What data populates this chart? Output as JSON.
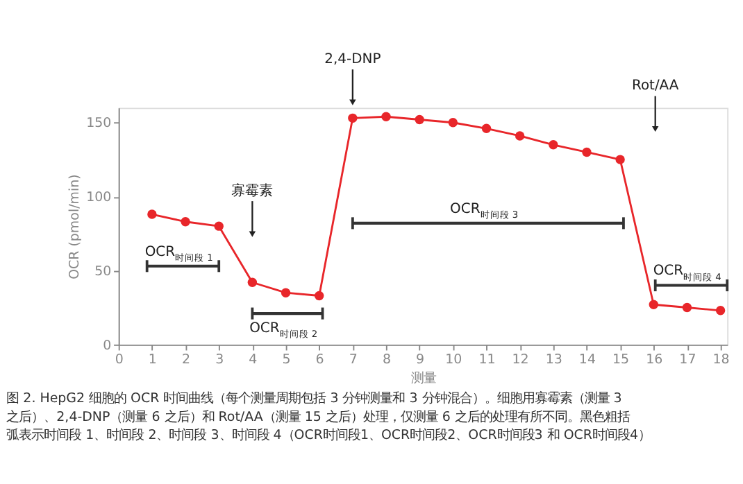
{
  "chart_data": {
    "type": "line",
    "xlabel": "测量",
    "ylabel": "OCR (pmol/min)",
    "xlim": [
      0,
      18.2
    ],
    "xticks": [
      0,
      1,
      2,
      3,
      4,
      5,
      6,
      7,
      8,
      9,
      10,
      11,
      12,
      13,
      14,
      15,
      16,
      17,
      18
    ],
    "ylim": [
      0,
      160
    ],
    "yticks": [
      0,
      50,
      100,
      150
    ],
    "grid": false,
    "marker": "circle",
    "line_style": "solid",
    "series": [
      {
        "color": "#e8262a",
        "x": [
          1,
          2,
          3,
          4,
          5,
          6,
          7,
          8,
          9,
          10,
          11,
          12,
          13,
          14,
          15,
          16,
          17,
          18
        ],
        "values": [
          88,
          83,
          80,
          42,
          35,
          33,
          153,
          154,
          152,
          150,
          146,
          141,
          135,
          130,
          125,
          27,
          25,
          23
        ]
      },
      {
        "color": "#333333",
        "marker": "none",
        "x": [
          0.85,
          3
        ],
        "values": [
          53,
          53
        ],
        "errors": [
          4,
          4
        ]
      },
      {
        "color": "#333333",
        "marker": "none",
        "x": [
          4,
          6.1
        ],
        "values": [
          21,
          21
        ],
        "errors": [
          4,
          4
        ]
      },
      {
        "color": "#333333",
        "marker": "none",
        "x": [
          7,
          15.1
        ],
        "values": [
          82,
          82
        ],
        "errors": [
          4,
          4
        ]
      },
      {
        "color": "#333333",
        "marker": "none",
        "x": [
          16.05,
          18.2
        ],
        "values": [
          40,
          40
        ],
        "errors": [
          4,
          4
        ]
      }
    ],
    "annotations": [
      "寡霉素",
      {
        "text": "2,4-DNP",
        "x": 7,
        "y": 161
      },
      "Rot/AA",
      "OCR$_{时间段 1}$",
      "OCR$_{时间段 2}$",
      "OCR$_{时间段 3}$",
      "OCR$_{时间段 4}$",
      "图 2. HepG2 细胞的 OCR 时间曲线（每个测量周期包括 3 分钟测量和 3 分钟混合）。细胞用寡霉素（测量 3 之后）、2,4-DNP（测量 6 之后）和 Rot/AA（测量 15 之后）处理，仅测量 6 之后的处理有所不同。黑色粗括弧表示时间段 1、时间段 2、时间段 3、时间段 4（OCR时间段1、OCR时间段2、OCR时间段3 和 OCR时间段4）"
    ]
  }
}
